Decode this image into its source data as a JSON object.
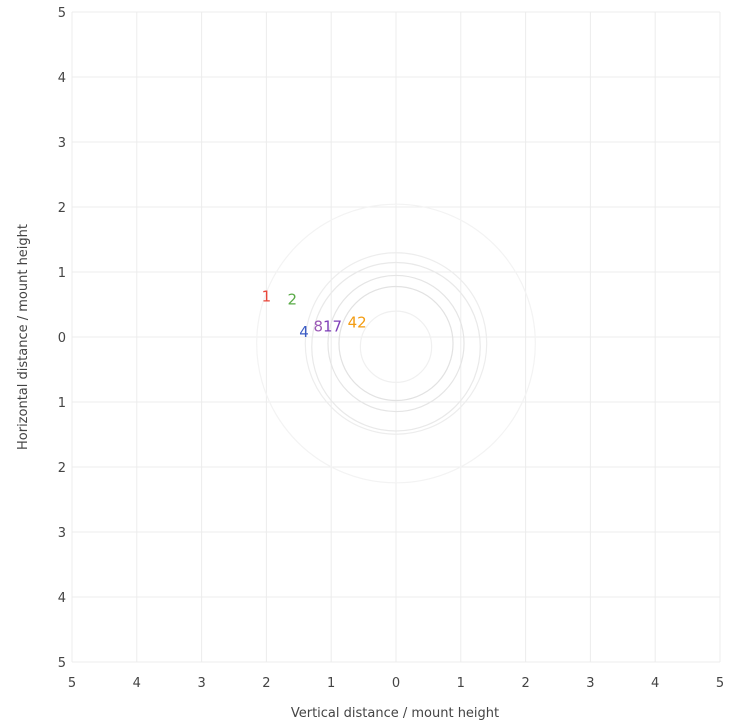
{
  "chart_data": {
    "type": "scatter",
    "xlabel": "Vertical distance / mount height",
    "ylabel": "Horizontal distance / mount height",
    "xlim": [
      -5,
      5
    ],
    "ylim": [
      -5,
      5
    ],
    "grid": true,
    "x_ticks": [
      -5,
      -4,
      -3,
      -2,
      -1,
      0,
      1,
      2,
      3,
      4,
      5
    ],
    "y_ticks": [
      5,
      4,
      3,
      2,
      1,
      0,
      -1,
      -2,
      -3,
      -4,
      -5
    ],
    "x_tick_labels": [
      "5",
      "4",
      "3",
      "2",
      "1",
      "0",
      "1",
      "2",
      "3",
      "4",
      "5"
    ],
    "y_tick_labels": [
      "5",
      "4",
      "3",
      "2",
      "1",
      "0",
      "1",
      "2",
      "3",
      "4",
      "5"
    ],
    "points": [
      {
        "label": "1",
        "x": -2.0,
        "y": 0.62,
        "color": "#e8463a"
      },
      {
        "label": "2",
        "x": -1.6,
        "y": 0.58,
        "color": "#5aab48"
      },
      {
        "label": "4",
        "x": -1.42,
        "y": 0.08,
        "color": "#3a5bc4"
      },
      {
        "label": "8",
        "x": -1.2,
        "y": 0.16,
        "color": "#9b59b6"
      },
      {
        "label": "17",
        "x": -0.98,
        "y": 0.16,
        "color": "#7e3fb8"
      },
      {
        "label": "42",
        "x": -0.6,
        "y": 0.22,
        "color": "#f39c12"
      }
    ],
    "rings": [
      {
        "cx": 0,
        "cy": -0.1,
        "r": 2.15,
        "color": "#f3f3f3"
      },
      {
        "cx": 0,
        "cy": -0.1,
        "r": 1.4,
        "color": "#ededed"
      },
      {
        "cx": 0,
        "cy": -0.15,
        "r": 1.3,
        "color": "#e9e9e9"
      },
      {
        "cx": 0,
        "cy": -0.1,
        "r": 1.05,
        "color": "#e5e5e5"
      },
      {
        "cx": 0,
        "cy": -0.1,
        "r": 0.88,
        "color": "#e2e2e2"
      },
      {
        "cx": 0,
        "cy": -0.15,
        "r": 0.55,
        "color": "#f0f0f0"
      }
    ]
  }
}
